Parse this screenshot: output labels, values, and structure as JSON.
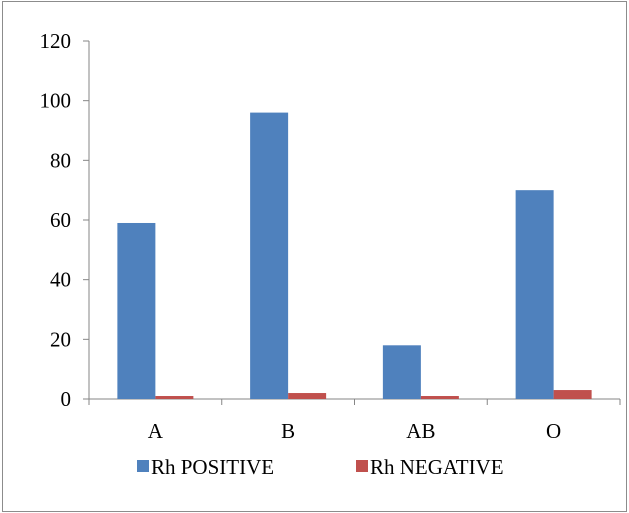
{
  "chart_data": {
    "type": "bar",
    "categories": [
      "A",
      "B",
      "AB",
      "O"
    ],
    "series": [
      {
        "name": "Rh POSITIVE",
        "values": [
          59,
          96,
          18,
          70
        ],
        "color": "#4F81BD"
      },
      {
        "name": "Rh NEGATIVE",
        "values": [
          1,
          2,
          1,
          3
        ],
        "color": "#C0504D"
      }
    ],
    "title": "",
    "xlabel": "",
    "ylabel": "",
    "ylim": [
      0,
      120
    ],
    "yticks": [
      0,
      20,
      40,
      60,
      80,
      100,
      120
    ],
    "grid": false,
    "legend": "bottom"
  }
}
